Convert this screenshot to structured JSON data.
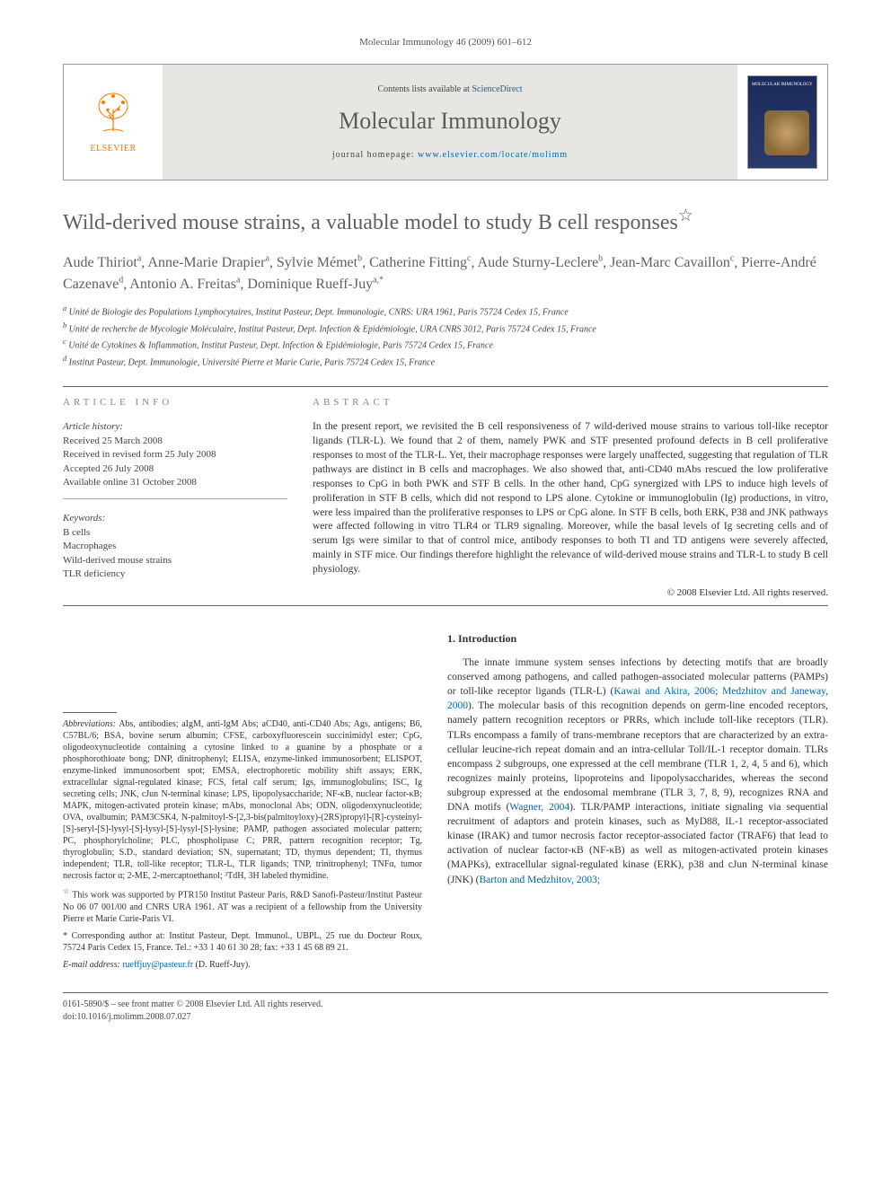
{
  "running_head": "Molecular Immunology 46 (2009) 601–612",
  "masthead": {
    "contents_prefix": "Contents lists available at ",
    "contents_link": "ScienceDirect",
    "journal_name": "Molecular Immunology",
    "homepage_prefix": "journal homepage: ",
    "homepage_link": "www.elsevier.com/locate/molimm",
    "publisher": "ELSEVIER",
    "cover_title": "MOLECULAR IMMUNOLOGY"
  },
  "title": "Wild-derived mouse strains, a valuable model to study B cell responses",
  "title_note_marker": "☆",
  "authors_html": "Aude Thiriot<sup>a</sup>, Anne-Marie Drapier<sup>a</sup>, Sylvie Mémet<sup>b</sup>, Catherine Fitting<sup>c</sup>, Aude Sturny-Leclere<sup>b</sup>, Jean-Marc Cavaillon<sup>c</sup>, Pierre-André Cazenave<sup>d</sup>, Antonio A. Freitas<sup>a</sup>, Dominique Rueff-Juy<sup>a,*</sup>",
  "affiliations": [
    "a Unité de Biologie des Populations Lymphocytaires, Institut Pasteur, Dept. Immunologie, CNRS: URA 1961, Paris 75724 Cedex 15, France",
    "b Unité de recherche de Mycologie Moléculaire, Institut Pasteur, Dept. Infection & Epidémiologie, URA CNRS 3012, Paris 75724 Cedex 15, France",
    "c Unité de Cytokines & Inflammation, Institut Pasteur, Dept. Infection & Epidémiologie, Paris 75724 Cedex 15, France",
    "d Institut Pasteur, Dept. Immunologie, Université Pierre et Marie Curie, Paris 75724 Cedex 15, France"
  ],
  "article_info": {
    "label": "ARTICLE INFO",
    "history_label": "Article history:",
    "history": [
      "Received 25 March 2008",
      "Received in revised form 25 July 2008",
      "Accepted 26 July 2008",
      "Available online 31 October 2008"
    ],
    "keywords_label": "Keywords:",
    "keywords": [
      "B cells",
      "Macrophages",
      "Wild-derived mouse strains",
      "TLR deficiency"
    ]
  },
  "abstract": {
    "label": "ABSTRACT",
    "text": "In the present report, we revisited the B cell responsiveness of 7 wild-derived mouse strains to various toll-like receptor ligands (TLR-L). We found that 2 of them, namely PWK and STF presented profound defects in B cell proliferative responses to most of the TLR-L. Yet, their macrophage responses were largely unaffected, suggesting that regulation of TLR pathways are distinct in B cells and macrophages. We also showed that, anti-CD40 mAbs rescued the low proliferative responses to CpG in both PWK and STF B cells. In the other hand, CpG synergized with LPS to induce high levels of proliferation in STF B cells, which did not respond to LPS alone. Cytokine or immunoglobulin (Ig) productions, in vitro, were less impaired than the proliferative responses to LPS or CpG alone. In STF B cells, both ERK, P38 and JNK pathways were affected following in vitro TLR4 or TLR9 signaling. Moreover, while the basal levels of Ig secreting cells and of serum Igs were similar to that of control mice, antibody responses to both TI and TD antigens were severely affected, mainly in STF mice. Our findings therefore highlight the relevance of wild-derived mouse strains and TLR-L to study B cell physiology.",
    "copyright": "© 2008 Elsevier Ltd. All rights reserved."
  },
  "footnotes": {
    "abbrev_label": "Abbreviations:",
    "abbrev_text": " Abs, antibodies; aIgM, anti-IgM Abs; aCD40, anti-CD40 Abs; Ags, antigens; B6, C57BL/6; BSA, bovine serum albumin; CFSE, carboxyfluorescein succinimidyl ester; CpG, oligodeoxynucleotide containing a cytosine linked to a guanine by a phosphate or a phosphorothioate bong; DNP, dinitrophenyl; ELISA, enzyme-linked immunosorbent; ELISPOT, enzyme-linked immunosorbent spot; EMSA, electrophoretic mobility shift assays; ERK, extracellular signal-regulated kinase; FCS, fetal calf serum; Igs, immunoglobulins; ISC, Ig secreting cells; JNK, cJun N-terminal kinase; LPS, lipopolysaccharide; NF-κB, nuclear factor-κB; MAPK, mitogen-activated protein kinase; mAbs, monoclonal Abs; ODN, oligodeoxynucleotide; OVA, ovalbumin; PAM3CSK4, N-palmitoyl-S-[2,3-bis(palmitoyloxy)-(2RS)propyl]-[R]-cysteinyl-[S]-seryl-[S]-lysyl-[S]-lysyl-[S]-lysyl-[S]-lysine; PAMP, pathogen associated molecular pattern; PC, phosphorylcholine; PLC, phospholipase C; PRR, pattern recognition receptor; Tg, thyroglobulin; S.D., standard deviation; SN, supernatant; TD, thymus dependent; TI, thymus independent; TLR, toll-like receptor; TLR-L, TLR ligands; TNP, trinitrophenyl; TNFα, tumor necrosis factor α; 2-ME, 2-mercaptoethanol; ³TdH, 3H labeled thymidine.",
    "funding_marker": "☆",
    "funding_text": " This work was supported by PTR150 Institut Pasteur Paris, R&D Sanofi-Pasteur/Institut Pasteur No 06 07 001/00 and CNRS URA 1961. AT was a recipient of a fellowship from the University Pierre et Marie Curie-Paris VI.",
    "corr_marker": "*",
    "corr_text": " Corresponding author at: Institut Pasteur, Dept. Immunol., UBPL, 25 rue du Docteur Roux, 75724 Paris Cedex 15, France. Tel.: +33 1 40 61 30 28; fax: +33 1 45 68 89 21.",
    "email_label": "E-mail address:",
    "email": "rueffjuy@pasteur.fr",
    "email_suffix": " (D. Rueff-Juy)."
  },
  "introduction": {
    "heading": "1. Introduction",
    "para": "The innate immune system senses infections by detecting motifs that are broadly conserved among pathogens, and called pathogen-associated molecular patterns (PAMPs) or toll-like receptor ligands (TLR-L) (",
    "cite1": "Kawai and Akira, 2006; Medzhitov and Janeway, 2000",
    "para2": "). The molecular basis of this recognition depends on germ-line encoded receptors, namely pattern recognition receptors or PRRs, which include toll-like receptors (TLR). TLRs encompass a family of trans-membrane receptors that are characterized by an extra-cellular leucine-rich repeat domain and an intra-cellular Toll/IL-1 receptor domain. TLRs encompass 2 subgroups, one expressed at the cell membrane (TLR 1, 2, 4, 5 and 6), which recognizes mainly proteins, lipoproteins and lipopolysaccharides, whereas the second subgroup expressed at the endosomal membrane (TLR 3, 7, 8, 9), recognizes RNA and DNA motifs (",
    "cite2": "Wagner, 2004",
    "para3": "). TLR/PAMP interactions, initiate signaling via sequential recruitment of adaptors and protein kinases, such as MyD88, IL-1 receptor-associated kinase (IRAK) and tumor necrosis factor receptor-associated factor (TRAF6) that lead to activation of nuclear factor-κB (NF-κB) as well as mitogen-activated protein kinases (MAPKs), extracellular signal-regulated kinase (ERK), p38 and cJun N-terminal kinase (JNK) (",
    "cite3": "Barton and Medzhitov, 2003;"
  },
  "footer": {
    "line1": "0161-5890/$ – see front matter © 2008 Elsevier Ltd. All rights reserved.",
    "line2": "doi:10.1016/j.molimm.2008.07.027"
  },
  "colors": {
    "link": "#0066aa",
    "elsevier_orange": "#ff7700",
    "heading_grey": "#606060",
    "masthead_bg": "#e8e6e2",
    "cover_top": "#1a2a5a",
    "cover_bottom": "#2a3a6a"
  }
}
